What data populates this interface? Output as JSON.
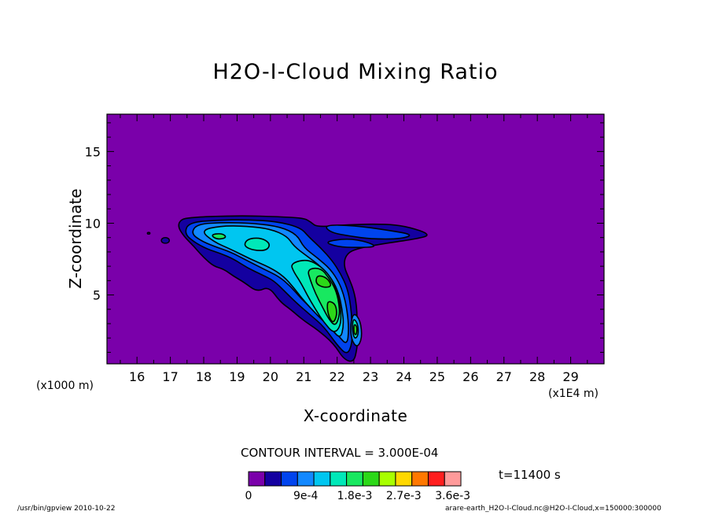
{
  "chart_data": {
    "type": "contour",
    "title": "H2O-I-Cloud Mixing Ratio",
    "xlabel": "X-coordinate",
    "ylabel": "Z-coordinate",
    "x_unit_label": "(x1000 m)",
    "x_scale_label": "(x1E4 m)",
    "x_ticks": [
      "16",
      "17",
      "18",
      "19",
      "20",
      "21",
      "22",
      "23",
      "24",
      "25",
      "26",
      "27",
      "28",
      "29"
    ],
    "y_ticks": [
      "5",
      "10",
      "15"
    ],
    "xlim": [
      15.1,
      30
    ],
    "ylim": [
      0.2,
      17.6
    ],
    "contour_interval_label": "CONTOUR INTERVAL = 3.000E-04",
    "contour_interval": 0.0003,
    "time_label": "t=11400 s",
    "colorbar": {
      "levels": [
        0,
        0.0003,
        0.0006,
        0.0009,
        0.0012,
        0.0015,
        0.0018,
        0.0021,
        0.0024,
        0.0027,
        0.003,
        0.0033,
        0.0036
      ],
      "colors": [
        "#7a00aa",
        "#1400a0",
        "#0044ee",
        "#1288ff",
        "#00c6f0",
        "#00e8b8",
        "#18e860",
        "#2cd818",
        "#a8ff00",
        "#ffd800",
        "#ff7800",
        "#ff1e1e",
        "#ff9a9a"
      ],
      "tick_labels": [
        "0",
        "9e-4",
        "1.8e-3",
        "2.7e-3",
        "3.6e-3"
      ]
    },
    "footer_left": "/usr/bin/gpview  2010-10-22",
    "footer_right": "arare-earth_H2O-I-Cloud.nc@H2O-I-Cloud,x=150000:300000",
    "shapes": [
      {
        "level": 1,
        "pts": [
          [
            17.22,
            9.8
          ],
          [
            17.32,
            10.28
          ],
          [
            17.6,
            10.38
          ],
          [
            18.2,
            10.48
          ],
          [
            19.2,
            10.52
          ],
          [
            20.2,
            10.46
          ],
          [
            21.0,
            10.36
          ],
          [
            21.2,
            10.1
          ],
          [
            21.4,
            9.72
          ],
          [
            22.3,
            9.9
          ],
          [
            23.4,
            9.95
          ],
          [
            24.1,
            9.78
          ],
          [
            24.85,
            9.18
          ],
          [
            24.3,
            8.88
          ],
          [
            23.3,
            8.55
          ],
          [
            22.5,
            8.18
          ],
          [
            22.25,
            7.75
          ],
          [
            22.2,
            7.0
          ],
          [
            22.35,
            6.2
          ],
          [
            22.5,
            5.3
          ],
          [
            22.58,
            4.3
          ],
          [
            22.6,
            3.3
          ],
          [
            22.62,
            2.2
          ],
          [
            22.6,
            1.3
          ],
          [
            22.5,
            0.3
          ],
          [
            22.2,
            0.5
          ],
          [
            21.9,
            1.6
          ],
          [
            21.4,
            2.6
          ],
          [
            21.0,
            3.2
          ],
          [
            20.6,
            4.0
          ],
          [
            20.3,
            4.5
          ],
          [
            19.95,
            5.6
          ],
          [
            19.6,
            5.2
          ],
          [
            19.2,
            5.9
          ],
          [
            18.9,
            6.3
          ],
          [
            18.6,
            6.8
          ],
          [
            18.3,
            7.0
          ],
          [
            18.0,
            7.6
          ],
          [
            17.7,
            8.4
          ],
          [
            17.4,
            9.1
          ]
        ]
      },
      {
        "level": 2,
        "pts": [
          [
            17.42,
            9.3
          ],
          [
            17.55,
            10.05
          ],
          [
            18.4,
            10.22
          ],
          [
            19.3,
            10.25
          ],
          [
            20.2,
            10.12
          ],
          [
            20.9,
            9.7
          ],
          [
            21.15,
            9.05
          ],
          [
            21.5,
            8.3
          ],
          [
            21.85,
            7.4
          ],
          [
            22.1,
            6.5
          ],
          [
            22.3,
            5.5
          ],
          [
            22.4,
            4.4
          ],
          [
            22.45,
            3.0
          ],
          [
            22.45,
            1.6
          ],
          [
            22.3,
            0.8
          ],
          [
            22.0,
            1.5
          ],
          [
            21.6,
            2.8
          ],
          [
            21.2,
            3.6
          ],
          [
            20.8,
            4.4
          ],
          [
            20.45,
            5.2
          ],
          [
            20.1,
            6.0
          ],
          [
            19.75,
            6.4
          ],
          [
            19.3,
            6.9
          ],
          [
            18.9,
            7.5
          ],
          [
            18.5,
            7.9
          ],
          [
            18.1,
            8.2
          ],
          [
            17.7,
            8.7
          ]
        ]
      },
      {
        "level": 2,
        "pts": [
          [
            21.6,
            9.88
          ],
          [
            22.5,
            9.85
          ],
          [
            23.5,
            9.52
          ],
          [
            24.3,
            9.2
          ],
          [
            23.9,
            8.9
          ],
          [
            23.0,
            8.9
          ],
          [
            22.4,
            9.1
          ],
          [
            21.8,
            9.35
          ]
        ]
      },
      {
        "level": 2,
        "pts": [
          [
            21.6,
            8.7
          ],
          [
            22.3,
            8.95
          ],
          [
            22.9,
            8.7
          ],
          [
            23.2,
            8.35
          ],
          [
            22.6,
            8.3
          ],
          [
            22.0,
            8.35
          ]
        ]
      },
      {
        "level": 3,
        "pts": [
          [
            17.62,
            9.3
          ],
          [
            17.8,
            9.95
          ],
          [
            18.6,
            10.05
          ],
          [
            19.5,
            10.0
          ],
          [
            20.3,
            9.75
          ],
          [
            20.8,
            9.2
          ],
          [
            21.0,
            8.3
          ],
          [
            21.4,
            7.6
          ],
          [
            21.8,
            6.8
          ],
          [
            22.05,
            5.9
          ],
          [
            22.2,
            5.0
          ],
          [
            22.3,
            3.9
          ],
          [
            22.35,
            2.6
          ],
          [
            22.3,
            1.5
          ],
          [
            22.05,
            2.1
          ],
          [
            21.7,
            3.1
          ],
          [
            21.3,
            3.9
          ],
          [
            20.9,
            4.8
          ],
          [
            20.6,
            5.6
          ],
          [
            20.25,
            6.3
          ],
          [
            19.8,
            6.8
          ],
          [
            19.3,
            7.4
          ],
          [
            18.8,
            8.0
          ],
          [
            18.3,
            8.4
          ],
          [
            17.9,
            8.8
          ]
        ]
      },
      {
        "level": 3,
        "pts": [
          [
            22.5,
            3.8
          ],
          [
            22.7,
            3.2
          ],
          [
            22.75,
            2.0
          ],
          [
            22.6,
            1.3
          ],
          [
            22.42,
            1.9
          ],
          [
            22.4,
            3.0
          ]
        ]
      },
      {
        "level": 4,
        "pts": [
          [
            17.9,
            9.5
          ],
          [
            18.5,
            9.82
          ],
          [
            19.3,
            9.8
          ],
          [
            20.0,
            9.6
          ],
          [
            20.5,
            9.1
          ],
          [
            20.7,
            8.4
          ],
          [
            21.1,
            7.7
          ],
          [
            21.5,
            7.0
          ],
          [
            21.85,
            6.1
          ],
          [
            22.05,
            5.1
          ],
          [
            22.15,
            4.0
          ],
          [
            22.2,
            2.9
          ],
          [
            22.1,
            1.9
          ],
          [
            21.8,
            2.7
          ],
          [
            21.4,
            3.6
          ],
          [
            21.0,
            4.6
          ],
          [
            20.7,
            5.5
          ],
          [
            20.4,
            6.3
          ],
          [
            20.0,
            6.9
          ],
          [
            19.4,
            7.5
          ],
          [
            18.8,
            8.2
          ],
          [
            18.3,
            8.7
          ]
        ]
      },
      {
        "level": 5,
        "pts": [
          [
            19.3,
            8.9
          ],
          [
            19.7,
            9.0
          ],
          [
            20.0,
            8.6
          ],
          [
            19.9,
            8.1
          ],
          [
            19.5,
            8.1
          ],
          [
            19.2,
            8.4
          ]
        ]
      },
      {
        "level": 5,
        "pts": [
          [
            20.6,
            7.2
          ],
          [
            21.1,
            7.5
          ],
          [
            21.5,
            7.0
          ],
          [
            21.75,
            6.4
          ],
          [
            21.95,
            5.6
          ],
          [
            22.05,
            4.7
          ],
          [
            22.12,
            3.8
          ],
          [
            22.1,
            2.8
          ],
          [
            21.9,
            2.3
          ],
          [
            21.6,
            3.1
          ],
          [
            21.35,
            4.0
          ],
          [
            21.1,
            5.0
          ],
          [
            20.9,
            5.9
          ],
          [
            20.7,
            6.6
          ]
        ]
      },
      {
        "level": 5,
        "pts": [
          [
            22.48,
            3.4
          ],
          [
            22.62,
            3.0
          ],
          [
            22.64,
            2.2
          ],
          [
            22.52,
            1.9
          ],
          [
            22.45,
            2.6
          ]
        ]
      },
      {
        "level": 6,
        "pts": [
          [
            21.1,
            6.8
          ],
          [
            21.5,
            6.9
          ],
          [
            21.75,
            6.2
          ],
          [
            21.95,
            5.4
          ],
          [
            22.05,
            4.5
          ],
          [
            22.08,
            3.6
          ],
          [
            21.95,
            2.8
          ],
          [
            21.75,
            3.3
          ],
          [
            21.55,
            4.2
          ],
          [
            21.35,
            5.1
          ],
          [
            21.2,
            6.0
          ]
        ]
      },
      {
        "level": 6,
        "pts": [
          [
            18.2,
            9.2
          ],
          [
            18.55,
            9.3
          ],
          [
            18.7,
            9.0
          ],
          [
            18.4,
            8.85
          ]
        ]
      },
      {
        "level": 7,
        "pts": [
          [
            21.4,
            6.4
          ],
          [
            21.7,
            6.2
          ],
          [
            21.85,
            5.6
          ],
          [
            21.6,
            5.5
          ],
          [
            21.35,
            5.8
          ]
        ]
      },
      {
        "level": 7,
        "pts": [
          [
            21.72,
            4.6
          ],
          [
            21.95,
            4.4
          ],
          [
            22.0,
            3.6
          ],
          [
            21.88,
            3.0
          ],
          [
            21.75,
            3.5
          ],
          [
            21.7,
            4.1
          ]
        ]
      },
      {
        "level": 7,
        "pts": [
          [
            22.5,
            3.0
          ],
          [
            22.6,
            2.8
          ],
          [
            22.58,
            2.2
          ],
          [
            22.5,
            2.3
          ]
        ]
      }
    ],
    "features": [
      {
        "level": 1,
        "cx": 16.85,
        "cy": 8.8,
        "rx": 0.12,
        "ry": 0.2
      },
      {
        "level": 1,
        "cx": 16.35,
        "cy": 9.3,
        "rx": 0.04,
        "ry": 0.06
      }
    ]
  }
}
